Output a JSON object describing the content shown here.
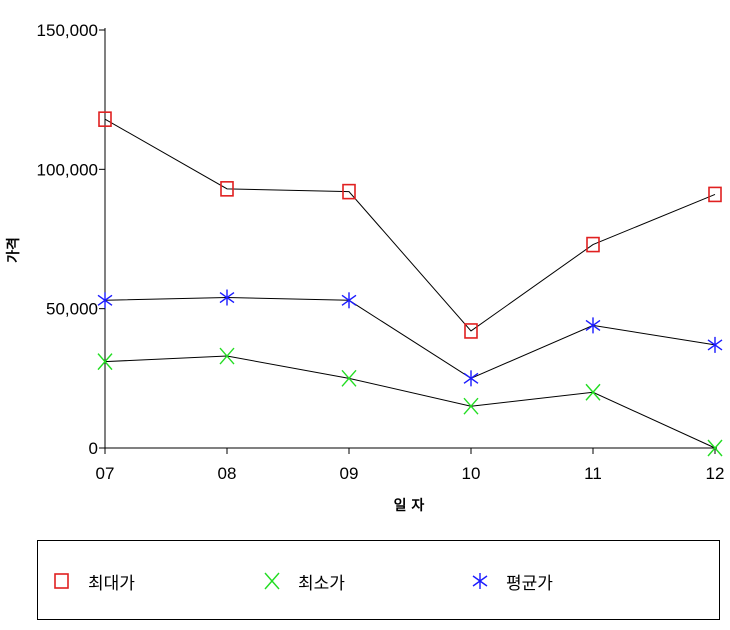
{
  "chart_data": {
    "type": "line",
    "title": "",
    "xlabel": "일 자",
    "ylabel": "가격",
    "categories": [
      "07",
      "08",
      "09",
      "10",
      "11",
      "12"
    ],
    "ylim": [
      0,
      150000
    ],
    "yticks": [
      0,
      50000,
      100000,
      150000
    ],
    "ytick_labels": [
      "0",
      "50,000",
      "100,000",
      "150,000"
    ],
    "grid": false,
    "legend_position": "bottom",
    "series": [
      {
        "name": "최대가",
        "marker": "square",
        "color": "#e02020",
        "values": [
          118000,
          93000,
          92000,
          42000,
          73000,
          91000
        ]
      },
      {
        "name": "최소가",
        "marker": "x",
        "color": "#22dd22",
        "values": [
          31000,
          33000,
          25000,
          15000,
          20000,
          0
        ]
      },
      {
        "name": "평균가",
        "marker": "asterisk",
        "color": "#1a1aff",
        "values": [
          53000,
          54000,
          53000,
          25000,
          44000,
          37000
        ]
      }
    ]
  }
}
